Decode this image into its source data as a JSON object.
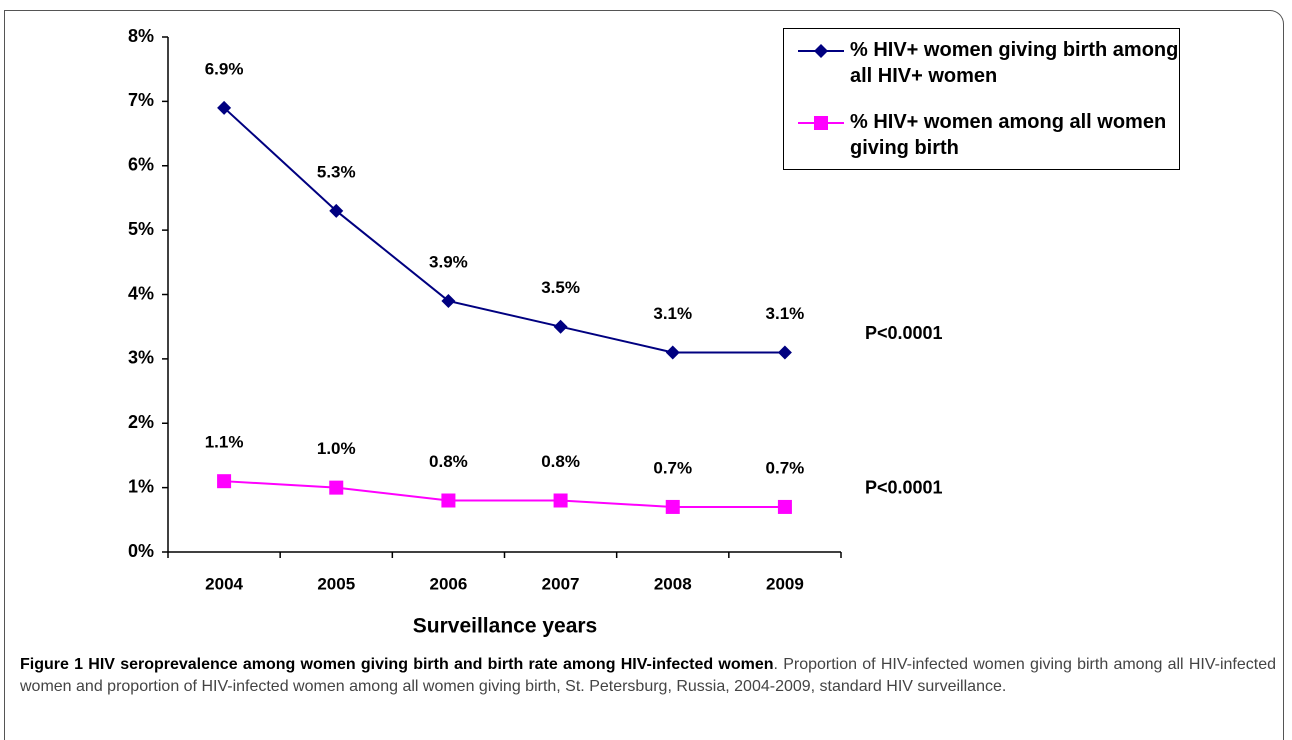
{
  "chart_data": {
    "type": "line",
    "categories": [
      "2004",
      "2005",
      "2006",
      "2007",
      "2008",
      "2009"
    ],
    "series": [
      {
        "name": "% HIV+ women giving birth among all HIV+ women",
        "color": "#000080",
        "marker": "diamond",
        "values": [
          6.9,
          5.3,
          3.9,
          3.5,
          3.1,
          3.1
        ],
        "value_labels": [
          "6.9%",
          "5.3%",
          "3.9%",
          "3.5%",
          "3.1%",
          "3.1%"
        ]
      },
      {
        "name": "% HIV+ women among all women giving birth",
        "color": "#ff00ff",
        "marker": "square",
        "values": [
          1.1,
          1.0,
          0.8,
          0.8,
          0.7,
          0.7
        ],
        "value_labels": [
          "1.1%",
          "1.0%",
          "0.8%",
          "0.8%",
          "0.7%",
          "0.7%"
        ]
      }
    ],
    "ylim": [
      0,
      8
    ],
    "yticks": [
      {
        "value": 0,
        "label": "0%"
      },
      {
        "value": 1,
        "label": "1%"
      },
      {
        "value": 2,
        "label": "2%"
      },
      {
        "value": 3,
        "label": "3%"
      },
      {
        "value": 4,
        "label": "4%"
      },
      {
        "value": 5,
        "label": "5%"
      },
      {
        "value": 6,
        "label": "6%"
      },
      {
        "value": 7,
        "label": "7%"
      },
      {
        "value": 8,
        "label": "8%"
      }
    ],
    "xlabel": "Surveillance years",
    "annotations": [
      "P<0.0001",
      "P<0.0001"
    ],
    "legend": "upper right",
    "grid": false
  },
  "caption": {
    "label": "Figure 1",
    "title": "HIV seroprevalence among women giving birth and birth rate among HIV-infected women",
    "text": ". Proportion of HIV-infected women giving birth among all HIV-infected women and proportion of HIV-infected women among all women giving birth, St. Petersburg, Russia, 2004-2009, standard HIV surveillance."
  }
}
